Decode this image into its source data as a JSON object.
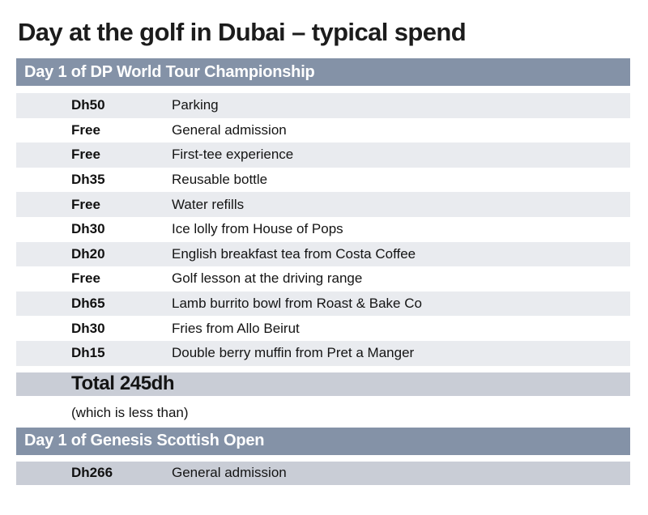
{
  "page": {
    "title": "Day at the golf in Dubai – typical spend"
  },
  "colors": {
    "section_header_bg": "#8492a7",
    "section_header_text": "#ffffff",
    "row_shade_bg": "#e9ebef",
    "row_plain_bg": "#ffffff",
    "highlight_bg": "#c9cdd6",
    "text": "#1a1a1a"
  },
  "sections": [
    {
      "header": "Day 1 of DP World Tour Championship",
      "rows": [
        {
          "price": "Dh50",
          "item": "Parking"
        },
        {
          "price": "Free",
          "item": "General admission"
        },
        {
          "price": "Free",
          "item": "First-tee experience"
        },
        {
          "price": "Dh35",
          "item": "Reusable bottle"
        },
        {
          "price": "Free",
          "item": "Water refills"
        },
        {
          "price": "Dh30",
          "item": "Ice lolly from House of Pops"
        },
        {
          "price": "Dh20",
          "item": "English breakfast tea from Costa Coffee"
        },
        {
          "price": "Free",
          "item": "Golf lesson at the driving range"
        },
        {
          "price": "Dh65",
          "item": "Lamb burrito bowl from Roast & Bake Co"
        },
        {
          "price": "Dh30",
          "item": "Fries from Allo Beirut"
        },
        {
          "price": "Dh15",
          "item": "Double berry muffin from Pret a Manger"
        }
      ],
      "total": "Total 245dh",
      "note": "(which is less than)"
    },
    {
      "header": "Day 1 of Genesis Scottish Open",
      "rows": [
        {
          "price": "Dh266",
          "item": "General admission"
        }
      ]
    }
  ],
  "chart_data": {
    "type": "table",
    "title": "Day at the golf in Dubai – typical spend",
    "sections": [
      {
        "header": "Day 1 of DP World Tour Championship",
        "columns": [
          "price",
          "item"
        ],
        "rows": [
          [
            "Dh50",
            "Parking"
          ],
          [
            "Free",
            "General admission"
          ],
          [
            "Free",
            "First-tee experience"
          ],
          [
            "Dh35",
            "Reusable bottle"
          ],
          [
            "Free",
            "Water refills"
          ],
          [
            "Dh30",
            "Ice lolly from House of Pops"
          ],
          [
            "Dh20",
            "English breakfast tea from Costa Coffee"
          ],
          [
            "Free",
            "Golf lesson at the driving range"
          ],
          [
            "Dh65",
            "Lamb burrito bowl from Roast & Bake Co"
          ],
          [
            "Dh30",
            "Fries from Allo Beirut"
          ],
          [
            "Dh15",
            "Double berry muffin from Pret a Manger"
          ]
        ],
        "total_label": "Total 245dh",
        "total_value_dh": 245,
        "note": "(which is less than)"
      },
      {
        "header": "Day 1 of Genesis Scottish Open",
        "columns": [
          "price",
          "item"
        ],
        "rows": [
          [
            "Dh266",
            "General admission"
          ]
        ]
      }
    ]
  }
}
